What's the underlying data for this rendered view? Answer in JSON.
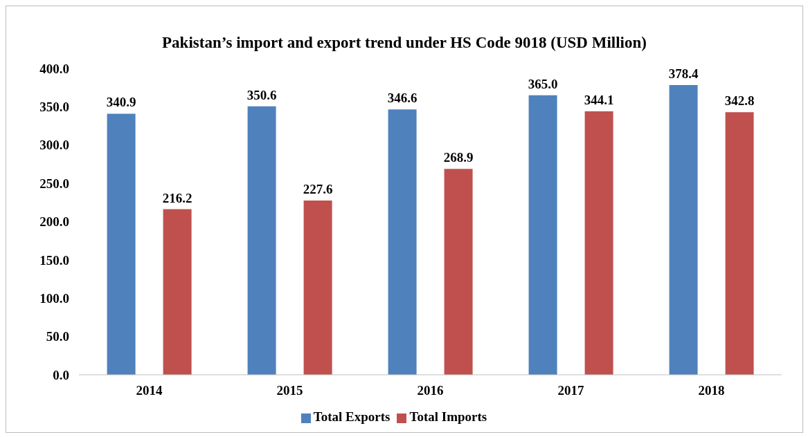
{
  "chart_data": {
    "type": "bar",
    "title": "Pakistan’s import and export trend under HS Code 9018 (USD Million)",
    "categories": [
      "2014",
      "2015",
      "2016",
      "2017",
      "2018"
    ],
    "series": [
      {
        "name": "Total Exports",
        "color": "#4f81bd",
        "values": [
          340.9,
          350.6,
          346.6,
          365.0,
          378.4
        ],
        "value_labels": [
          "340.9",
          "350.6",
          "346.6",
          "365.0",
          "378.4"
        ]
      },
      {
        "name": "Total Imports",
        "color": "#c0504d",
        "values": [
          216.2,
          227.6,
          268.9,
          344.1,
          342.8
        ],
        "value_labels": [
          "216.2",
          "227.6",
          "268.9",
          "344.1",
          "342.8"
        ]
      }
    ],
    "ylim": [
      0,
      400
    ],
    "yticks": [
      {
        "value": 0,
        "label": "0.0"
      },
      {
        "value": 50,
        "label": "50.0"
      },
      {
        "value": 100,
        "label": "100.0"
      },
      {
        "value": 150,
        "label": "150.0"
      },
      {
        "value": 200,
        "label": "200.0"
      },
      {
        "value": 250,
        "label": "250.0"
      },
      {
        "value": 300,
        "label": "300.0"
      },
      {
        "value": 350,
        "label": "350.0"
      },
      {
        "value": 400,
        "label": "400.0"
      }
    ],
    "grid": false,
    "legend": "bottom"
  }
}
